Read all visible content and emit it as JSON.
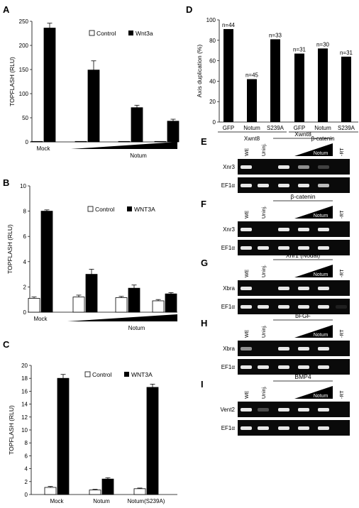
{
  "chart_data": [
    {
      "panel": "A",
      "type": "bar",
      "ylabel": "TOPFLASH (RLU)",
      "ylim": [
        0,
        250
      ],
      "yticks": [
        0,
        50,
        100,
        150,
        200,
        250
      ],
      "legend": [
        "Control",
        "Wnt3a"
      ],
      "xlabels": [
        "Mock",
        "Notum"
      ],
      "series": [
        {
          "name": "Control",
          "color": "#ffffff",
          "values": [
            1,
            1,
            1,
            1
          ],
          "errors": [
            0,
            0,
            0,
            0
          ]
        },
        {
          "name": "Wnt3a",
          "color": "#000000",
          "values": [
            236,
            149,
            71,
            43
          ],
          "errors": [
            10,
            19,
            5,
            4
          ]
        }
      ]
    },
    {
      "panel": "B",
      "type": "bar",
      "ylabel": "TOPFLASH (RLU)",
      "ylim": [
        0,
        10
      ],
      "yticks": [
        0,
        2,
        4,
        6,
        8,
        10
      ],
      "legend": [
        "Control",
        "WNT3A"
      ],
      "xlabels": [
        "Mock",
        "Notum"
      ],
      "series": [
        {
          "name": "Control",
          "color": "#ffffff",
          "values": [
            1.1,
            1.2,
            1.15,
            0.9
          ],
          "errors": [
            0.1,
            0.15,
            0.1,
            0.1
          ]
        },
        {
          "name": "WNT3A",
          "color": "#000000",
          "values": [
            8.0,
            3.0,
            1.9,
            1.45
          ],
          "errors": [
            0.1,
            0.4,
            0.25,
            0.1
          ]
        }
      ]
    },
    {
      "panel": "C",
      "type": "bar",
      "ylabel": "TOPFLASH (RLU)",
      "ylim": [
        0,
        20
      ],
      "yticks": [
        0,
        2,
        4,
        6,
        8,
        10,
        12,
        14,
        16,
        18,
        20
      ],
      "legend": [
        "Control",
        "WNT3A"
      ],
      "categories": [
        "Mock",
        "Notum",
        "Notum(S239A)"
      ],
      "series": [
        {
          "name": "Control",
          "color": "#ffffff",
          "values": [
            1.1,
            0.7,
            0.9
          ],
          "errors": [
            0.15,
            0.1,
            0.1
          ]
        },
        {
          "name": "WNT3A",
          "color": "#000000",
          "values": [
            18.0,
            2.4,
            16.6
          ],
          "errors": [
            0.6,
            0.2,
            0.5
          ]
        }
      ]
    },
    {
      "panel": "D",
      "type": "bar",
      "ylabel": "Axis duplication (%)",
      "ylim": [
        0,
        100
      ],
      "yticks": [
        0,
        20,
        40,
        60,
        80,
        100
      ],
      "categories": [
        "GFP",
        "Notum",
        "S239A",
        "GFP",
        "Notum",
        "S239A"
      ],
      "groups": [
        "Xwnt8",
        "β-catenin"
      ],
      "values": [
        91,
        42,
        81,
        67,
        72,
        64
      ],
      "n_labels": [
        "n=44",
        "n=45",
        "n=33",
        "n=31",
        "n=30",
        "n=31"
      ]
    }
  ],
  "gels": [
    {
      "panel": "E",
      "header": "Xwnt8",
      "genes": [
        "Xnr3",
        "EF1α"
      ]
    },
    {
      "panel": "F",
      "header": "β-catenin",
      "genes": [
        "Xnr3",
        "EF1α"
      ]
    },
    {
      "panel": "G",
      "header": "Xnr1 (Nodal)",
      "genes": [
        "Xbra",
        "EF1α"
      ]
    },
    {
      "panel": "H",
      "header": "bFGF",
      "genes": [
        "Xbra",
        "EF1α"
      ]
    },
    {
      "panel": "I",
      "header": "BMP4",
      "genes": [
        "Vent2",
        "EF1α"
      ]
    }
  ],
  "gel_lanes": {
    "we": "WE",
    "uninj": "Uninj.",
    "notum": "Notum",
    "rt": "-RT"
  },
  "colors": {
    "bar_dark": "#000000",
    "bar_light": "#ffffff",
    "gel_bg": "#0a0a0a",
    "band": "#e8e8e8"
  }
}
